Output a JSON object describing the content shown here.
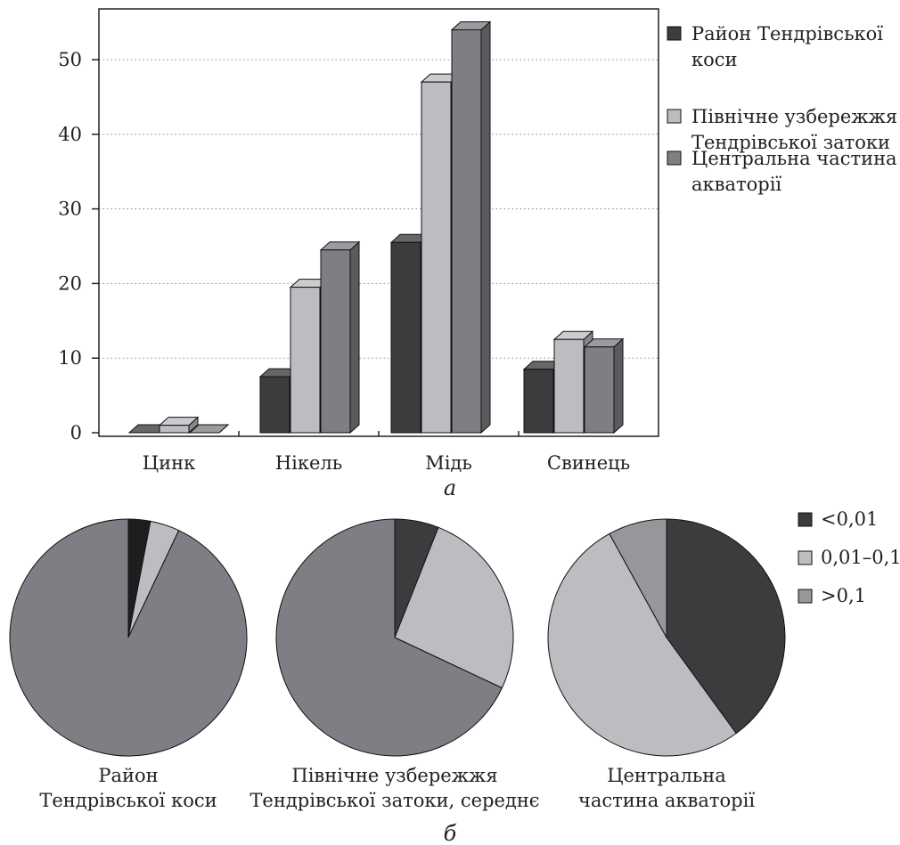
{
  "figure": {
    "panel_a_label": "а",
    "panel_b_label": "б"
  },
  "colors": {
    "dark": "#3c3c3e",
    "light": "#bcbdc1",
    "medium": "#7e7f84",
    "mid_pie": "#96979b",
    "black": "#1e1e20",
    "axis": "#222222",
    "grid": "#8a8a8a"
  },
  "chart_data": [
    {
      "type": "bar",
      "title": "",
      "xlabel": "",
      "ylabel": "",
      "ylim": [
        0,
        56
      ],
      "yticks": [
        0,
        10,
        20,
        30,
        40,
        50
      ],
      "ytick_labels": [
        "0",
        "10",
        "20",
        "30",
        "40",
        "50"
      ],
      "grid": true,
      "style": "3d",
      "legend_position": "right",
      "categories": [
        "Цинк",
        "Нікель",
        "Мідь",
        "Свинець"
      ],
      "series": [
        {
          "name": "Район Тендрівської коси",
          "legend_lines": [
            "Район Тендрівської",
            " коси"
          ],
          "color": "#3c3c3e",
          "values": [
            0,
            7.5,
            25.5,
            8.5
          ]
        },
        {
          "name": "Північне узбережжя Тендрівської затоки",
          "legend_lines": [
            "Північне узбережжя",
            "Тендрівської затоки"
          ],
          "color": "#bcbdc1",
          "values": [
            1,
            19.5,
            47,
            12.5
          ]
        },
        {
          "name": "Центральна частина акваторії",
          "legend_lines": [
            "Центральна частина",
            "акваторії"
          ],
          "color": "#7e7f84",
          "values": [
            0,
            24.5,
            54,
            11.5
          ]
        }
      ]
    },
    {
      "type": "pie",
      "legend_position": "top-right",
      "legend": [
        {
          "label": "<0,01",
          "color": "#3c3c3e"
        },
        {
          "label": "0,01–0,1",
          "color": "#bcbdc1"
        },
        {
          "label": ">0,1",
          "color": "#96979b"
        }
      ],
      "pies": [
        {
          "caption_lines": [
            "Район",
            "Тендрівської коси"
          ],
          "slices": [
            {
              "label": "<0,01",
              "value": 3,
              "color": "#1e1e20"
            },
            {
              "label": "0,01–0,1",
              "value": 4,
              "color": "#bcbdc1"
            },
            {
              "label": ">0,1",
              "value": 93,
              "color": "#7e7f84"
            }
          ]
        },
        {
          "caption_lines": [
            "Північне узбережжя",
            "Тендрівської затоки, середнє"
          ],
          "slices": [
            {
              "label": "<0,01",
              "value": 6,
              "color": "#3c3c3e"
            },
            {
              "label": "0,01–0,1",
              "value": 26,
              "color": "#bcbdc1"
            },
            {
              "label": ">0,1",
              "value": 68,
              "color": "#7e7f84"
            }
          ]
        },
        {
          "caption_lines": [
            "Центральна",
            "частина акваторії"
          ],
          "slices": [
            {
              "label": "<0,01",
              "value": 40,
              "color": "#3c3c3e"
            },
            {
              "label": "0,01–0,1",
              "value": 52,
              "color": "#bcbdc1"
            },
            {
              "label": ">0,1",
              "value": 8,
              "color": "#96979b"
            }
          ]
        }
      ]
    }
  ]
}
